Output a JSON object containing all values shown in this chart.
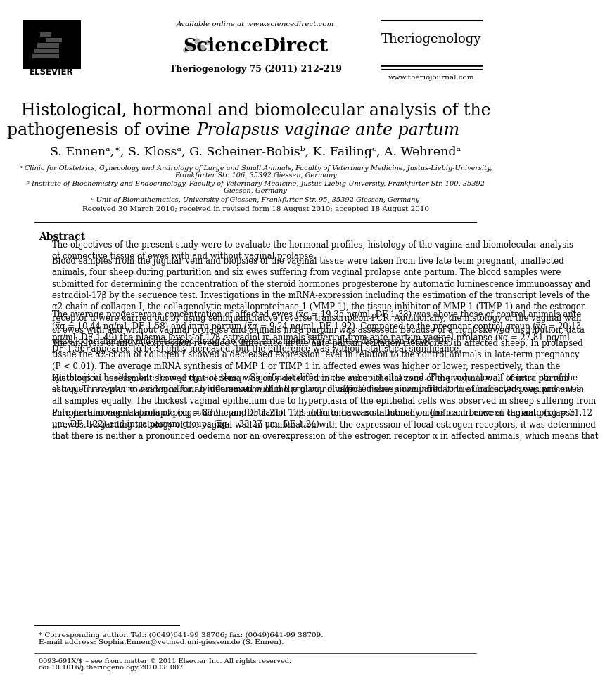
{
  "bg_color": "#ffffff",
  "header_available": "Available online at www.sciencedirect.com",
  "header_journal_name": "Theriogenology",
  "header_journal_issue": "Theriogenology 75 (2011) 212–219",
  "header_website": "www.theriojournal.com",
  "title_line1": "Histological, hormonal and biomolecular analysis of the",
  "title_line2_normal": "pathogenesis of ovine ",
  "title_line2_italic": "Prolapsus vaginae ante partum",
  "authors": "S. Ennenᵃ,*, S. Klossᵃ, G. Scheiner-Bobisᵇ, K. Failingᶜ, A. Wehrendᵃ",
  "affil_a1": "ᵃ Clinic for Obstetrics, Gynecology and Andrology of Large and Small Animals, Faculty of Veterinary Medicine, Justus-Liebig-University,",
  "affil_a2": "Frankfurter Str. 106, 35392 Giessen, Germany",
  "affil_b1": "ᵇ Institute of Biochemistry and Endocrinology, Faculty of Veterinary Medicine, Justus-Liebig-University, Frankfurter Str. 100, 35392",
  "affil_b2": "Giessen, Germany",
  "affil_c1": "ᶜ Unit of Biomathematics, University of Giessen, Frankfurter Str. 95, 35392 Giessen, Germany",
  "received": "Received 30 March 2010; received in revised form 18 August 2010; accepted 18 August 2010",
  "abstract_title": "Abstract",
  "abstract_p1": "The objectives of the present study were to evaluate the hormonal profiles, histology of the vagina and biomolecular analysis\nof connective tissue of ewes with and without vaginal prolapse.",
  "abstract_p2": "Blood samples from the jugular vein and biopsies of the vaginal tissue were taken from five late term pregnant, unaffected\nanimals, four sheep during parturition and six ewes suffering from vaginal prolapse ante partum. The blood samples were\nsubmitted for determining the concentration of the steroid hormones progesterone by automatic luminescence immunoassay and\nestradiol-17β by the sequence test. Investigations in the mRNA-expression including the estimation of the transcript levels of the\nα2-chain of collagen I, the collagenolytic metalloproteinase 1 (MMP 1), the tissue inhibitor of MMP 1 (TIMP 1) and the estrogen\nreceptor α were carried out by using semiquantitative reverse transcription-PCR. Additionally, the histology of the vaginal wall\nof ewes with and without vaginal prolapse and animals intra partum was assessed. Because of a right-skewed distribution, data\nwere logarithmised and described using the geometric mean (x̅g) and the dispersion factor (DF).",
  "abstract_p3": "The average progesterone concentration of affected ewes (x̅g = 19.35 ng/ml, DF 1.33) was above those of control animals ante\n(x̅g = 10.44 ng/ml, DF 1.58) and intra partum (x̅g = 9.24 ng/ml, DF 1.92). Compared to the pregnant control group (x̅g = 20.13\npg/ml, DF 1.49) the plasma levels of 17β-estradiol in animals suffering from ante partum vaginal prolapse (x̅g = 27.81 pg/ml,\nDF 1.56) appeared to be slightly increased, but the difference was without statistical significance.",
  "abstract_p4": "The analysis of mRNA expression revealed a difference in the ante partum collagen metabolism in affected sheep. In prolapsed\ntissue the α2-chain of collagen I showed a decreased expression level in relation to the control animals in late-term pregnancy\n(P < 0.01). The average mRNA synthesis of MMP 1 or TIMP 1 in affected ewes was higher or lower, respectively, than the\nsynthesis in healthy, late-term pregnant sheep. Significant differences were not observed. The production of transcripts of the\nestrogen receptor α was significantly decreased within the group of affected sheep compared to the unaffected pregnant ewes.",
  "abstract_p5": "Histological assessment showed that oedema was only detected in the subepithelial zone of the vaginal wall of intra partum\nsheep. There was no evidence for an inflammation of the prolapsed vaginal tissue since infiltration of leucocytes was present in\nall samples equally. The thickest vaginal epithelium due to hyperplasia of the epithelial cells was observed in sheep suffering from\nante partum vaginal prolapse (x̅g = 83.95 μm, DF 1.21). This difference was statistically significant between the ante (x̅g = 31.12\nμm, DF 1.22) and intra partum groups (x̅g = 33.27 μm, DF 1.24).",
  "abstract_p6": "Peripheral concentrations of progesterone and estradiol-17β seem to have no influence on the occurrence of vaginal prolapse\nin ewes. Regarding histology of the vaginal wall in combination with the expression of local estrogen receptors, it was determined\nthat there is neither a pronounced oedema nor an overexpression of the estrogen receptor α in affected animals, which means that",
  "footnote1": "* Corresponding author. Tel.: (0049)641-99 38706; fax: (0049)641-99 38709.",
  "footnote2": "E-mail address: Sophia.Ennen@vetmed.uni-giessen.de (S. Ennen).",
  "footer1": "0093-691X/$ – see front matter © 2011 Elsevier Inc. All rights reserved.",
  "footer2": "doi:10.1016/j.theriogenology.2010.08.007"
}
